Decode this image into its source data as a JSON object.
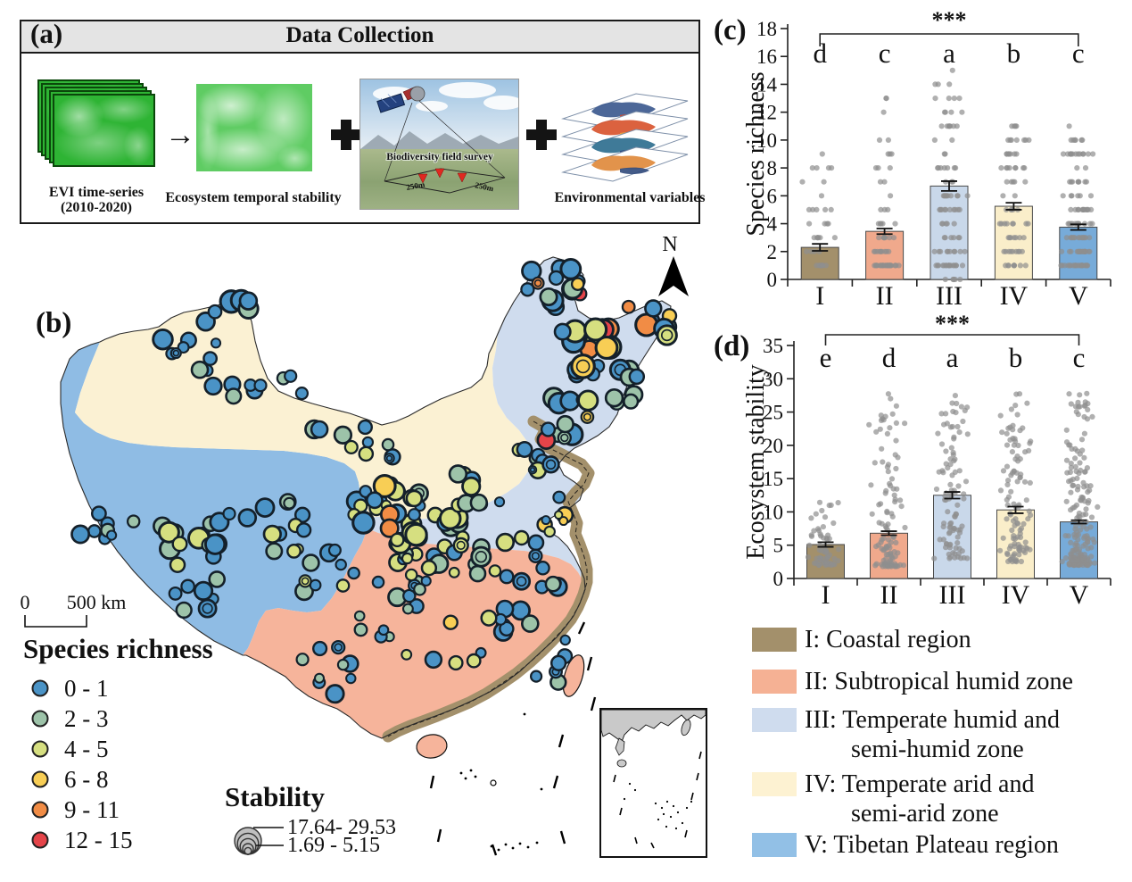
{
  "panels": {
    "a": "(a)",
    "b": "(b)",
    "c": "(c)",
    "d": "(d)"
  },
  "panel_a": {
    "title": "Data Collection",
    "evi_label1": "EVI time-series",
    "evi_label2": "(2010-2020)",
    "stability_label": "Ecosystem temporal stability",
    "survey_label": "Biodiversity field survey",
    "survey_dim_left": "250m",
    "survey_dim_right": "250m",
    "env_label": "Environmental variables",
    "arrow": "→"
  },
  "map": {
    "north": "N",
    "scale_zero": "0",
    "scale_label": "500 km",
    "richness_title": "Species richness",
    "richness_classes": [
      {
        "label": "0 - 1",
        "color": "#4a93c6"
      },
      {
        "label": "2 - 3",
        "color": "#9dc3a9"
      },
      {
        "label": "4 - 5",
        "color": "#d6df80"
      },
      {
        "label": "6 - 8",
        "color": "#f8ce55"
      },
      {
        "label": "9 - 11",
        "color": "#f18c45"
      },
      {
        "label": "12 - 15",
        "color": "#e54449"
      }
    ],
    "stability_title": "Stability",
    "stability_max": "17.64- 29.53",
    "stability_min": "1.69 - 5.15",
    "zone_colors": {
      "I": "#a3906b",
      "II": "#f6b49b",
      "III": "#cfdcee",
      "IV": "#fbf1d3",
      "V": "#8fbce4"
    },
    "color_weights": {
      "B": {
        "B": 0.85,
        "G": 0.15
      },
      "G": {
        "G": 0.8,
        "B": 0.2
      },
      "BG": {
        "B": 0.55,
        "G": 0.45
      },
      "GY": {
        "G": 0.4,
        "Y": 0.45,
        "B": 0.15
      },
      "BGY": {
        "B": 0.4,
        "G": 0.3,
        "Y": 0.3
      },
      "BY": {
        "B": 0.5,
        "Y": 0.3,
        "G": 0.2
      },
      "GYB": {
        "G": 0.35,
        "Y": 0.35,
        "B": 0.3
      },
      "BOY": {
        "B": 0.5,
        "O": 0.25,
        "Y": 0.25
      },
      "MIX": {
        "B": 0.35,
        "G": 0.25,
        "Y": 0.3,
        "O": 0.1
      },
      "MIX2": {
        "B": 0.3,
        "G": 0.2,
        "Y": 0.3,
        "O": 0.12,
        "R": 0.06,
        "D": 0.02
      },
      "NE": {
        "B": 0.45,
        "G": 0.12,
        "Y": 0.13,
        "O": 0.15,
        "R": 0.12,
        "D": 0.03
      }
    },
    "site_clusters": [
      [
        255,
        348,
        26,
        13,
        6,
        7,
        13,
        "B"
      ],
      [
        215,
        396,
        36,
        22,
        9,
        5,
        11,
        "B"
      ],
      [
        262,
        441,
        30,
        14,
        6,
        6,
        11,
        "B"
      ],
      [
        331,
        431,
        15,
        10,
        3,
        5,
        8,
        "B"
      ],
      [
        120,
        586,
        30,
        22,
        8,
        5,
        10,
        "BG"
      ],
      [
        200,
        612,
        46,
        28,
        14,
        6,
        12,
        "GY"
      ],
      [
        300,
        592,
        46,
        30,
        12,
        5,
        11,
        "BGY"
      ],
      [
        232,
        666,
        46,
        18,
        7,
        5,
        10,
        "BG"
      ],
      [
        360,
        640,
        40,
        25,
        10,
        5,
        11,
        "BGY"
      ],
      [
        432,
        560,
        40,
        28,
        20,
        5,
        12,
        "MIX"
      ],
      [
        482,
        602,
        46,
        30,
        22,
        5,
        12,
        "MIX2"
      ],
      [
        530,
        546,
        30,
        20,
        10,
        5,
        10,
        "BGY"
      ],
      [
        415,
        500,
        26,
        15,
        6,
        5,
        9,
        "BY"
      ],
      [
        382,
        488,
        40,
        14,
        4,
        6,
        10,
        "G"
      ],
      [
        452,
        666,
        30,
        20,
        8,
        5,
        10,
        "BG"
      ],
      [
        620,
        322,
        34,
        24,
        16,
        6,
        13,
        "NE"
      ],
      [
        652,
        390,
        38,
        34,
        18,
        6,
        13,
        "NE"
      ],
      [
        728,
        360,
        24,
        17,
        8,
        6,
        12,
        "NE"
      ],
      [
        700,
        432,
        24,
        20,
        8,
        6,
        11,
        "BG"
      ],
      [
        640,
        470,
        30,
        25,
        12,
        5,
        12,
        "NE"
      ],
      [
        600,
        520,
        24,
        20,
        8,
        4,
        9,
        "BGY"
      ],
      [
        624,
        576,
        18,
        24,
        8,
        4,
        9,
        "BOY"
      ],
      [
        560,
        622,
        48,
        24,
        12,
        5,
        11,
        "GYB"
      ],
      [
        482,
        640,
        40,
        18,
        8,
        5,
        10,
        "GYB"
      ],
      [
        608,
        650,
        24,
        14,
        6,
        5,
        10,
        "BY"
      ],
      [
        586,
        700,
        30,
        24,
        7,
        5,
        10,
        "BG"
      ],
      [
        618,
        742,
        18,
        28,
        6,
        5,
        9,
        "B"
      ],
      [
        505,
        722,
        55,
        34,
        7,
        5,
        9,
        "BOY"
      ],
      [
        382,
        750,
        44,
        28,
        9,
        5,
        10,
        "BG"
      ],
      [
        422,
        700,
        30,
        18,
        5,
        5,
        9,
        "BG"
      ]
    ]
  },
  "chart_data": [
    {
      "id": "chart-c",
      "panel_label": "(c)",
      "type": "bar",
      "title": "",
      "xlabel": "",
      "ylabel": "Species richness",
      "ylim": [
        0,
        18
      ],
      "ytick_step": 2,
      "categories": [
        "I",
        "II",
        "III",
        "IV",
        "V"
      ],
      "values": [
        2.3,
        3.45,
        6.7,
        5.25,
        3.75
      ],
      "errors": [
        0.25,
        0.2,
        0.35,
        0.25,
        0.2
      ],
      "letters": [
        "d",
        "c",
        "a",
        "b",
        "c"
      ],
      "significance": "***",
      "bar_colors": [
        "#a3906b",
        "#f0a98c",
        "#c9d8ea",
        "#faeeca",
        "#77abd9"
      ],
      "jitter": {
        "counts": [
          35,
          60,
          95,
          70,
          115
        ],
        "min": [
          1,
          1,
          0.3,
          1,
          1
        ],
        "max": [
          9,
          14,
          15.5,
          11.5,
          11
        ],
        "exp": [
          2.2,
          2.4,
          1.35,
          1.6,
          2.0
        ],
        "integer": true
      }
    },
    {
      "id": "chart-d",
      "panel_label": "(d)",
      "type": "bar",
      "title": "",
      "xlabel": "",
      "ylabel": "Ecosystem stability",
      "ylim": [
        0,
        35
      ],
      "ytick_step": 5,
      "categories": [
        "I",
        "II",
        "III",
        "IV",
        "V"
      ],
      "values": [
        5.1,
        6.8,
        12.5,
        10.3,
        8.5
      ],
      "errors": [
        0.35,
        0.3,
        0.5,
        0.5,
        0.25
      ],
      "letters": [
        "e",
        "d",
        "a",
        "b",
        "c"
      ],
      "significance": "***",
      "bar_colors": [
        "#a3906b",
        "#f0a98c",
        "#c9d8ea",
        "#faeeca",
        "#77abd9"
      ],
      "jitter": {
        "counts": [
          60,
          110,
          100,
          110,
          180
        ],
        "min": [
          2,
          1.8,
          3,
          2.5,
          2
        ],
        "max": [
          12,
          29.5,
          27.5,
          28,
          28
        ],
        "exp": [
          2.2,
          2.6,
          1.6,
          1.9,
          2.3
        ],
        "integer": false
      }
    }
  ],
  "region_legend": [
    {
      "color": "#a3906b",
      "lines": [
        "I: Coastal region"
      ]
    },
    {
      "color": "#f5b194",
      "lines": [
        "II: Subtropical humid zone"
      ]
    },
    {
      "color": "#cfdcee",
      "lines": [
        "III: Temperate humid and",
        "semi-humid zone"
      ]
    },
    {
      "color": "#fdf2d2",
      "lines": [
        "IV: Temperate arid and",
        "semi-arid zone"
      ]
    },
    {
      "color": "#92c0e6",
      "lines": [
        "V: Tibetan Plateau region"
      ]
    }
  ]
}
